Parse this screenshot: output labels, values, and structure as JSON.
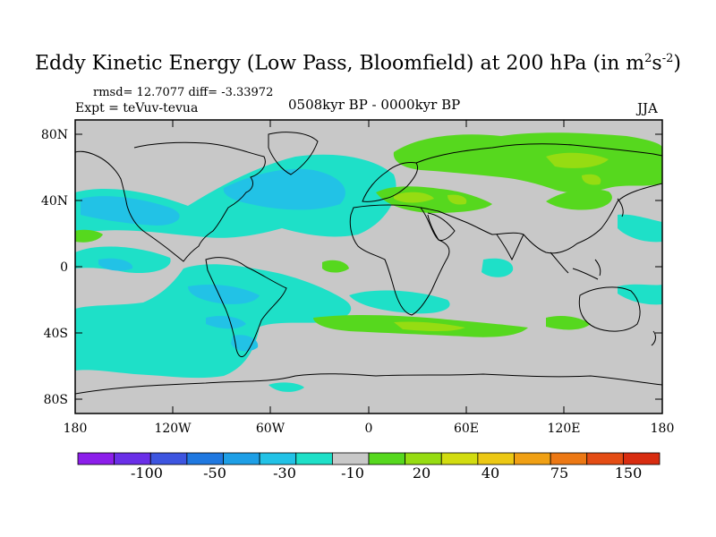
{
  "header": {
    "title_main": "Eddy Kinetic Energy (Low Pass, Bloomfield) at 200 hPa (in m",
    "title_sup1": "2",
    "title_s": "s",
    "title_sup2": "-2",
    "title_end": ")",
    "stats": "rmsd= 12.7077 diff= -3.33972",
    "experiment": "Expt = teVuv-tevua",
    "period": "0508kyr BP - 0000kyr BP",
    "season": "JJA"
  },
  "axes": {
    "lat_labels": [
      "80N",
      "40N",
      "0",
      "40S",
      "80S"
    ],
    "lon_labels": [
      "180",
      "120W",
      "60W",
      "0",
      "60E",
      "120E",
      "180"
    ]
  },
  "colorbar": {
    "colors": [
      "#8c1eea",
      "#6a2fe8",
      "#3d55e0",
      "#1f78e0",
      "#1e9fe6",
      "#22c2e6",
      "#1ee0c8",
      "#c8c8c8",
      "#56d81e",
      "#96dc12",
      "#d2dc10",
      "#ecc814",
      "#f0a014",
      "#ec7814",
      "#e44c14",
      "#d82c10"
    ],
    "labels": [
      "-100",
      "-50",
      "-30",
      "-10",
      "20",
      "40",
      "75",
      "150"
    ]
  },
  "legend_colors": {
    "background": "#c8c8c8",
    "neg_weak": "#1ee0c8",
    "neg_mid": "#22c2e6",
    "pos_weak": "#56d81e",
    "pos_mid": "#96dc12"
  }
}
